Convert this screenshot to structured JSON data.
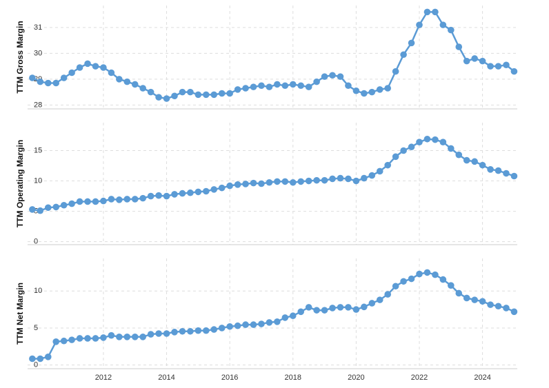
{
  "chart_data": [
    {
      "type": "line",
      "y_label": "TTM Gross Margin",
      "color": "#5b9bd5",
      "grid": true,
      "xlim": [
        2009.6,
        2025.1
      ],
      "xticks": [
        2012,
        2014,
        2016,
        2018,
        2020,
        2022,
        2024
      ],
      "ylim": [
        27.85,
        31.85
      ],
      "yticks": [
        28,
        29,
        30,
        31
      ],
      "x": [
        2009.75,
        2010,
        2010.25,
        2010.5,
        2010.75,
        2011,
        2011.25,
        2011.5,
        2011.75,
        2012,
        2012.25,
        2012.5,
        2012.75,
        2013,
        2013.25,
        2013.5,
        2013.75,
        2014,
        2014.25,
        2014.5,
        2014.75,
        2015,
        2015.25,
        2015.5,
        2015.75,
        2016,
        2016.25,
        2016.5,
        2016.75,
        2017,
        2017.25,
        2017.5,
        2017.75,
        2018,
        2018.25,
        2018.5,
        2018.75,
        2019,
        2019.25,
        2019.5,
        2019.75,
        2020,
        2020.25,
        2020.5,
        2020.75,
        2021,
        2021.25,
        2021.5,
        2021.75,
        2022,
        2022.25,
        2022.5,
        2022.75,
        2023,
        2023.25,
        2023.5,
        2023.75,
        2024,
        2024.25,
        2024.5,
        2024.75,
        2025
      ],
      "values": [
        29.05,
        28.9,
        28.85,
        28.85,
        29.05,
        29.25,
        29.45,
        29.6,
        29.5,
        29.45,
        29.25,
        29.0,
        28.9,
        28.8,
        28.65,
        28.5,
        28.3,
        28.25,
        28.35,
        28.5,
        28.5,
        28.4,
        28.4,
        28.4,
        28.45,
        28.45,
        28.6,
        28.65,
        28.7,
        28.75,
        28.7,
        28.8,
        28.75,
        28.8,
        28.75,
        28.7,
        28.9,
        29.1,
        29.15,
        29.1,
        28.75,
        28.55,
        28.45,
        28.5,
        28.6,
        28.65,
        29.3,
        29.95,
        30.4,
        31.1,
        31.6,
        31.6,
        31.1,
        30.9,
        30.25,
        29.7,
        29.8,
        29.7,
        29.5,
        29.5,
        29.55,
        29.3
      ]
    },
    {
      "type": "line",
      "y_label": "TTM Operating Margin",
      "color": "#5b9bd5",
      "grid": true,
      "xlim": [
        2009.6,
        2025.1
      ],
      "xticks": [
        2012,
        2014,
        2016,
        2018,
        2020,
        2022,
        2024
      ],
      "ylim": [
        -0.5,
        19.6
      ],
      "yticks": [
        0,
        5,
        10,
        15
      ],
      "x": [
        2009.75,
        2010,
        2010.25,
        2010.5,
        2010.75,
        2011,
        2011.25,
        2011.5,
        2011.75,
        2012,
        2012.25,
        2012.5,
        2012.75,
        2013,
        2013.25,
        2013.5,
        2013.75,
        2014,
        2014.25,
        2014.5,
        2014.75,
        2015,
        2015.25,
        2015.5,
        2015.75,
        2016,
        2016.25,
        2016.5,
        2016.75,
        2017,
        2017.25,
        2017.5,
        2017.75,
        2018,
        2018.25,
        2018.5,
        2018.75,
        2019,
        2019.25,
        2019.5,
        2019.75,
        2020,
        2020.25,
        2020.5,
        2020.75,
        2021,
        2021.25,
        2021.5,
        2021.75,
        2022,
        2022.25,
        2022.5,
        2022.75,
        2023,
        2023.25,
        2023.5,
        2023.75,
        2024,
        2024.25,
        2024.5,
        2024.75,
        2025
      ],
      "values": [
        5.3,
        5.1,
        5.6,
        5.7,
        6.0,
        6.25,
        6.6,
        6.6,
        6.6,
        6.7,
        7.0,
        6.9,
        7.0,
        7.0,
        7.15,
        7.5,
        7.6,
        7.5,
        7.8,
        7.95,
        8.05,
        8.2,
        8.3,
        8.6,
        8.85,
        9.2,
        9.4,
        9.5,
        9.65,
        9.55,
        9.75,
        9.9,
        9.9,
        9.75,
        9.9,
        10.0,
        10.1,
        10.1,
        10.35,
        10.45,
        10.35,
        10.0,
        10.45,
        10.9,
        11.6,
        12.6,
        14.0,
        15.0,
        15.6,
        16.4,
        16.9,
        16.8,
        16.4,
        15.35,
        14.3,
        13.4,
        13.2,
        12.6,
        11.9,
        11.7,
        11.25,
        10.8
      ]
    },
    {
      "type": "line",
      "y_label": "TTM Net Margin",
      "color": "#5b9bd5",
      "grid": true,
      "xlim": [
        2009.6,
        2025.1
      ],
      "xticks": [
        2012,
        2014,
        2016,
        2018,
        2020,
        2022,
        2024
      ],
      "ylim": [
        -0.5,
        14.4
      ],
      "yticks": [
        0,
        5,
        10
      ],
      "x": [
        2009.75,
        2010,
        2010.25,
        2010.5,
        2010.75,
        2011,
        2011.25,
        2011.5,
        2011.75,
        2012,
        2012.25,
        2012.5,
        2012.75,
        2013,
        2013.25,
        2013.5,
        2013.75,
        2014,
        2014.25,
        2014.5,
        2014.75,
        2015,
        2015.25,
        2015.5,
        2015.75,
        2016,
        2016.25,
        2016.5,
        2016.75,
        2017,
        2017.25,
        2017.5,
        2017.75,
        2018,
        2018.25,
        2018.5,
        2018.75,
        2019,
        2019.25,
        2019.5,
        2019.75,
        2020,
        2020.25,
        2020.5,
        2020.75,
        2021,
        2021.25,
        2021.5,
        2021.75,
        2022,
        2022.25,
        2022.5,
        2022.75,
        2023,
        2023.25,
        2023.5,
        2023.75,
        2024,
        2024.25,
        2024.5,
        2024.75,
        2025
      ],
      "values": [
        0.85,
        0.85,
        1.1,
        3.15,
        3.25,
        3.4,
        3.6,
        3.6,
        3.6,
        3.7,
        4.0,
        3.8,
        3.8,
        3.8,
        3.8,
        4.15,
        4.25,
        4.25,
        4.45,
        4.55,
        4.55,
        4.65,
        4.65,
        4.8,
        5.0,
        5.2,
        5.3,
        5.45,
        5.45,
        5.55,
        5.75,
        5.85,
        6.4,
        6.65,
        7.2,
        7.8,
        7.4,
        7.4,
        7.7,
        7.8,
        7.8,
        7.5,
        7.85,
        8.35,
        8.8,
        9.55,
        10.65,
        11.3,
        11.65,
        12.3,
        12.5,
        12.2,
        11.55,
        10.75,
        9.7,
        9.05,
        8.8,
        8.6,
        8.15,
        7.95,
        7.7,
        7.2
      ]
    }
  ]
}
